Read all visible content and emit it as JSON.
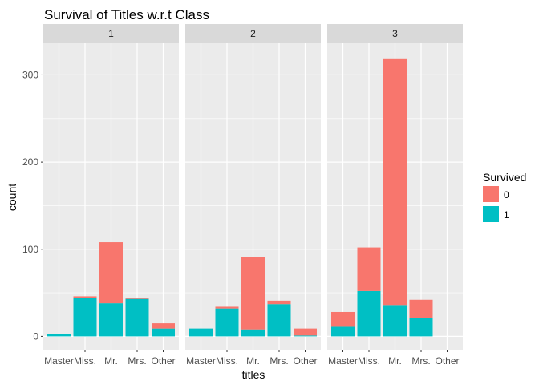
{
  "chart_data": {
    "type": "bar",
    "stacked": true,
    "faceted": true,
    "title": "Survival of Titles w.r.t Class",
    "xlabel": "titles",
    "ylabel": "count",
    "ylim": [
      0,
      330
    ],
    "yticks": [
      0,
      100,
      200,
      300
    ],
    "categories": [
      "Master",
      "Miss.",
      "Mr.",
      "Mrs.",
      "Other"
    ],
    "facets": [
      {
        "label": "1",
        "series": [
          {
            "name": "0",
            "values": [
              0,
              2,
              70,
              1,
              6
            ]
          },
          {
            "name": "1",
            "values": [
              3,
              44,
              38,
              43,
              9
            ]
          }
        ]
      },
      {
        "label": "2",
        "series": [
          {
            "name": "0",
            "values": [
              0,
              2,
              83,
              4,
              8
            ]
          },
          {
            "name": "1",
            "values": [
              9,
              32,
              8,
              37,
              1
            ]
          }
        ]
      },
      {
        "label": "3",
        "series": [
          {
            "name": "0",
            "values": [
              17,
              50,
              283,
              21,
              0
            ]
          },
          {
            "name": "1",
            "values": [
              11,
              52,
              36,
              21,
              0
            ]
          }
        ]
      }
    ],
    "legend": {
      "title": "Survived",
      "position": "right",
      "entries": [
        "0",
        "1"
      ]
    },
    "colors": {
      "0": "#F8766D",
      "1": "#00BFC4"
    },
    "grid": true,
    "panel_background": "#EBEBEB",
    "strip_background": "#D9D9D9"
  }
}
